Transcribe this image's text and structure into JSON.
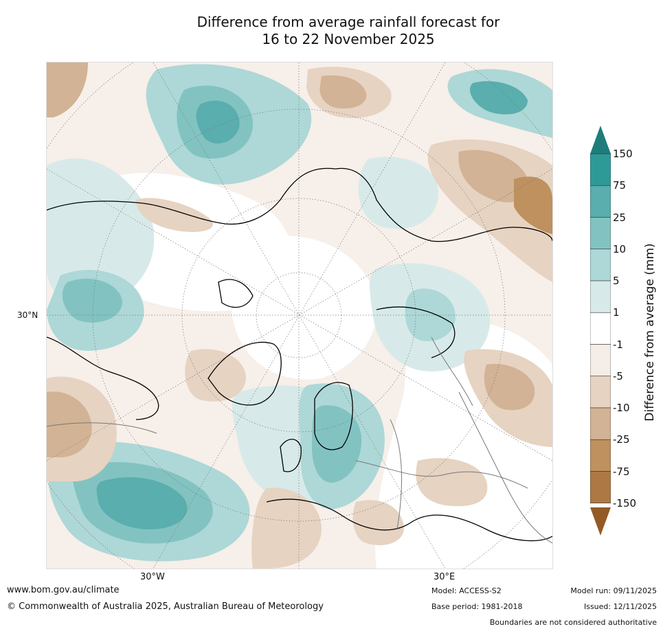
{
  "title": {
    "line1": "Difference from average rainfall forecast for",
    "line2": "16 to 22 November 2025"
  },
  "map": {
    "projection": "north polar stereographic",
    "latitude_label": "30°N",
    "longitude_labels": [
      "30°W",
      "30°E"
    ],
    "colors": {
      "ocean_wet": "#d5e8e7",
      "land_neutral": "#ffffff",
      "coastline": "#000000",
      "borders": "#777777"
    }
  },
  "colorbar": {
    "axis_label": "Difference from average (mm)",
    "levels": [
      "150",
      "75",
      "25",
      "10",
      "5",
      "1",
      "-1",
      "-5",
      "-10",
      "-25",
      "-75",
      "-150"
    ],
    "colors": [
      "#1e7d7a",
      "#2e9a98",
      "#5aaeae",
      "#82c3c1",
      "#add8d7",
      "#d7eae9",
      "#ffffff",
      "#f5ede7",
      "#e6d3c2",
      "#d2b395",
      "#be915f",
      "#ad7844",
      "#935a26"
    ]
  },
  "footer": {
    "website": "www.bom.gov.au/climate",
    "copyright": "© Commonwealth of Australia 2025, Australian Bureau of Meteorology",
    "model": "Model: ACCESS-S2",
    "base_period": "Base period: 1981-2018",
    "model_run": "Model run: 09/11/2025",
    "issued": "Issued: 12/11/2025",
    "disclaimer": "Boundaries are not considered authoritative"
  }
}
